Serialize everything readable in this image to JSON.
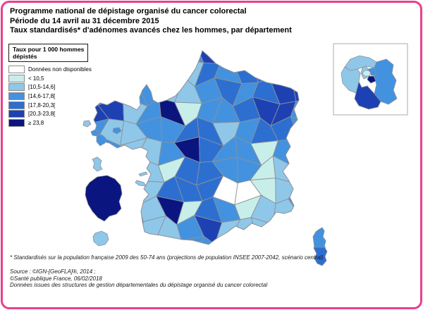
{
  "frame": {
    "border_color": "#E8418B"
  },
  "title": {
    "line1": "Programme national de dépistage organisé du cancer colorectal",
    "line2": "Période du 14 avril au 31 décembre 2015",
    "line3": "Taux standardisés* d'adénomes avancés chez les hommes, par département"
  },
  "legend": {
    "title_line1": "Taux pour 1 000 hommes",
    "title_line2": "dépistés",
    "classes": [
      {
        "label": "Données non disponibles",
        "color": "#FFFFFF"
      },
      {
        "label": "< 10,5",
        "color": "#C8EEEA"
      },
      {
        "label": "[10,5-14,6]",
        "color": "#8FC7E9"
      },
      {
        "label": "[14,6-17,8[",
        "color": "#4392DF"
      },
      {
        "label": "[17,8-20,3[",
        "color": "#2C6FD1"
      },
      {
        "label": "[20,3-23,8[",
        "color": "#1D41B3"
      },
      {
        "label": "≥ 23,8",
        "color": "#0B1580"
      }
    ]
  },
  "footnotes": {
    "standardized": "* Standardisés sur la population française 2009 des 50-74 ans (projections de population INSEE 2007-2042, scénario central)",
    "source_line1": "Source : ©IGN-[GeoFLA]®, 2014 ;",
    "source_line2": "©Santé publique France, 06/02/2018",
    "source_line3": "Données issues des structures de gestion départementales du dépistage organisé du cancer colorectal"
  },
  "map": {
    "border_stroke": "#8C9197",
    "cells": [
      [
        3,
        3,
        3,
        3,
        3,
        3,
        5,
        4,
        3,
        3,
        3,
        3
      ],
      [
        3,
        3,
        3,
        3,
        3,
        2,
        4,
        3,
        4,
        4,
        3,
        3
      ],
      [
        3,
        3,
        3,
        3,
        2,
        2,
        3,
        4,
        3,
        4,
        5,
        5
      ],
      [
        5,
        5,
        2,
        3,
        6,
        1,
        3,
        3,
        4,
        5,
        5,
        3
      ],
      [
        3,
        2,
        2,
        3,
        3,
        4,
        4,
        2,
        3,
        4,
        4,
        3
      ],
      [
        3,
        3,
        2,
        2,
        3,
        6,
        4,
        3,
        3,
        1,
        3,
        3
      ],
      [
        3,
        3,
        3,
        2,
        1,
        4,
        4,
        3,
        3,
        1,
        2,
        3
      ],
      [
        3,
        3,
        3,
        2,
        4,
        4,
        4,
        0,
        0,
        1,
        2,
        3
      ],
      [
        3,
        3,
        3,
        2,
        6,
        1,
        4,
        3,
        1,
        2,
        2,
        3
      ],
      [
        3,
        3,
        3,
        2,
        2,
        3,
        5,
        2,
        2,
        2,
        3,
        3
      ],
      [
        3,
        3,
        3,
        3,
        3,
        3,
        3,
        3,
        3,
        3,
        3,
        3
      ]
    ],
    "idf_inset": {
      "background": "#FFFFFF",
      "border": "#ABABAB",
      "departments": [
        {
          "name": "val-doise",
          "class": 2
        },
        {
          "name": "yvelines",
          "class": 2
        },
        {
          "name": "seine-et-marne",
          "class": 3
        },
        {
          "name": "essonne",
          "class": 5
        },
        {
          "name": "hauts-de-seine",
          "class": 2
        },
        {
          "name": "seine-saint-denis",
          "class": 3
        },
        {
          "name": "val-de-marne",
          "class": 6
        },
        {
          "name": "paris",
          "class": 1
        }
      ]
    },
    "corsica": {
      "north_class": 3,
      "south_class": 4
    },
    "overseas": [
      {
        "name": "guadeloupe",
        "class": 3
      },
      {
        "name": "martinique",
        "class": 2
      },
      {
        "name": "guyane",
        "class": 6
      },
      {
        "name": "reunion",
        "class": 2
      }
    ],
    "islands": [
      {
        "name": "ouessant",
        "class": 2
      },
      {
        "name": "belle-ile",
        "class": 3
      },
      {
        "name": "ile-de-re",
        "class": 2
      },
      {
        "name": "ile-oleron",
        "class": 2
      }
    ]
  }
}
